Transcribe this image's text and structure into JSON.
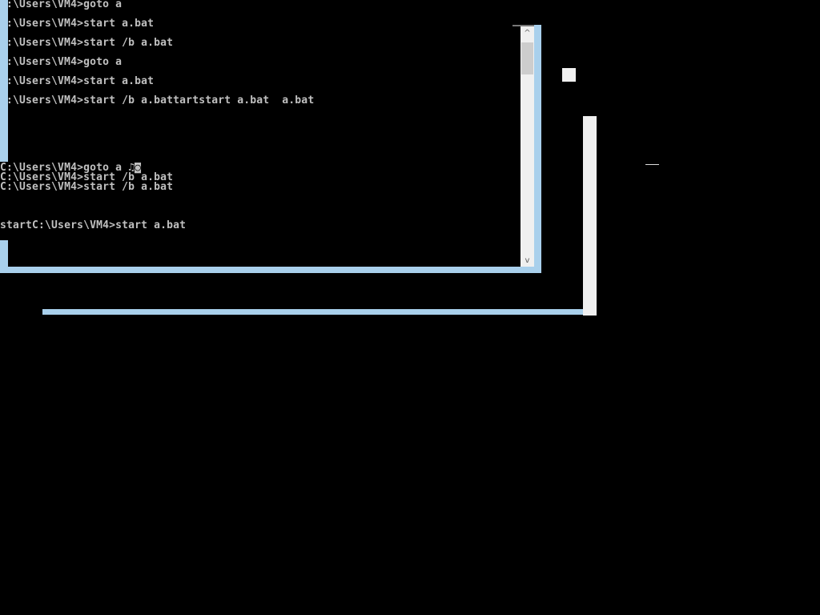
{
  "console_top": {
    "lines": [
      ":\\Users\\VM4>goto a",
      ":\\Users\\VM4>start a.bat",
      ":\\Users\\VM4>start /b a.bat",
      ":\\Users\\VM4>goto a",
      ":\\Users\\VM4>start a.bat",
      ":\\Users\\VM4>start /b a.battartstart a.bat  a.bat"
    ]
  },
  "console_bottom": {
    "lines": [
      "C:\\Users\\VM4>goto a ♫◙",
      "C:\\Users\\VM4>start /b a.bat",
      "C:\\Users\\VM4>start /b a.bat",
      "startC:\\Users\\VM4>start a.bat"
    ]
  },
  "scrollbar": {
    "up_icon": "chevron-up-icon",
    "down_icon": "chevron-down-icon",
    "up": "^",
    "down": "v"
  },
  "colors": {
    "window_border": "#a9d0ec",
    "background": "#000000",
    "text": "#c0c0c0"
  }
}
